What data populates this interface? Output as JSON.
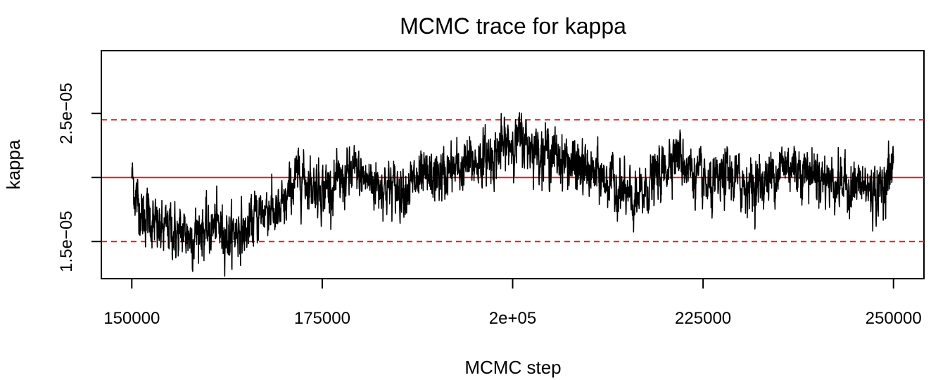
{
  "chart_data": {
    "type": "line",
    "title": "MCMC trace for kappa",
    "xlabel": "MCMC step",
    "ylabel": "kappa",
    "xlim": [
      146000,
      254000
    ],
    "ylim": [
      1.21e-05,
      2.99e-05
    ],
    "x_ticks": [
      {
        "value": 150000,
        "label": "150000"
      },
      {
        "value": 175000,
        "label": "175000"
      },
      {
        "value": 200000,
        "label": "2e+05"
      },
      {
        "value": 225000,
        "label": "225000"
      },
      {
        "value": 250000,
        "label": "250000"
      }
    ],
    "y_ticks": [
      {
        "value": 1.5e-05,
        "label": "1.5e−05"
      },
      {
        "value": 2e-05,
        "label": ""
      },
      {
        "value": 2.5e-05,
        "label": "2.5e−05"
      }
    ],
    "reference_lines": [
      {
        "value": 2e-05,
        "style": "solid",
        "color": "#e31a1c"
      },
      {
        "value": 2.45e-05,
        "style": "dashed",
        "color": "#e31a1c"
      },
      {
        "value": 1.5e-05,
        "style": "dashed",
        "color": "#e31a1c"
      }
    ],
    "trace_color": "#000000",
    "grid": false,
    "legend": "none",
    "series": [
      {
        "x": [
          150000,
          150500,
          151000,
          151500,
          152000,
          153000,
          154000,
          155000,
          156000,
          157000,
          158000,
          159000,
          160000,
          161000,
          162000,
          163000,
          164000,
          165000,
          166000,
          167000,
          168000,
          169000,
          170000,
          171000,
          172000,
          173000,
          174000,
          175000,
          177000,
          179000,
          181000,
          183000,
          185000,
          187000,
          189000,
          191000,
          193000,
          195000,
          197000,
          199000,
          201000,
          203000,
          205000,
          207000,
          209000,
          211000,
          213000,
          215000,
          216000,
          217000,
          218000,
          220000,
          221000,
          222000,
          224000,
          226000,
          228000,
          230000,
          232000,
          234000,
          236000,
          238000,
          240000,
          242000,
          244000,
          246000,
          248000,
          249000,
          250000
        ],
        "y": [
          2.02e-05,
          1.85e-05,
          1.78e-05,
          1.68e-05,
          1.72e-05,
          1.62e-05,
          1.57e-05,
          1.62e-05,
          1.54e-05,
          1.58e-05,
          1.53e-05,
          1.61e-05,
          1.57e-05,
          1.63e-05,
          1.58e-05,
          1.54e-05,
          1.61e-05,
          1.56e-05,
          1.68e-05,
          1.73e-05,
          1.78e-05,
          1.69e-05,
          1.76e-05,
          1.93e-05,
          2.03e-05,
          1.97e-05,
          1.94e-05,
          1.92e-05,
          1.93e-05,
          2.04e-05,
          1.98e-05,
          1.94e-05,
          1.91e-05,
          1.95e-05,
          1.99e-05,
          2.02e-05,
          2.07e-05,
          2.12e-05,
          2.16e-05,
          2.25e-05,
          2.3e-05,
          2.23e-05,
          2.19e-05,
          2.13e-05,
          2.06e-05,
          2.02e-05,
          1.96e-05,
          1.85e-05,
          1.78e-05,
          1.86e-05,
          1.96e-05,
          2.06e-05,
          2.22e-05,
          2.16e-05,
          2.02e-05,
          1.89e-05,
          2.02e-05,
          1.96e-05,
          1.93e-05,
          2.02e-05,
          2.11e-05,
          2.06e-05,
          2.03e-05,
          1.97e-05,
          1.94e-05,
          1.93e-05,
          1.88e-05,
          1.98e-05,
          2.1e-05
        ]
      }
    ]
  }
}
